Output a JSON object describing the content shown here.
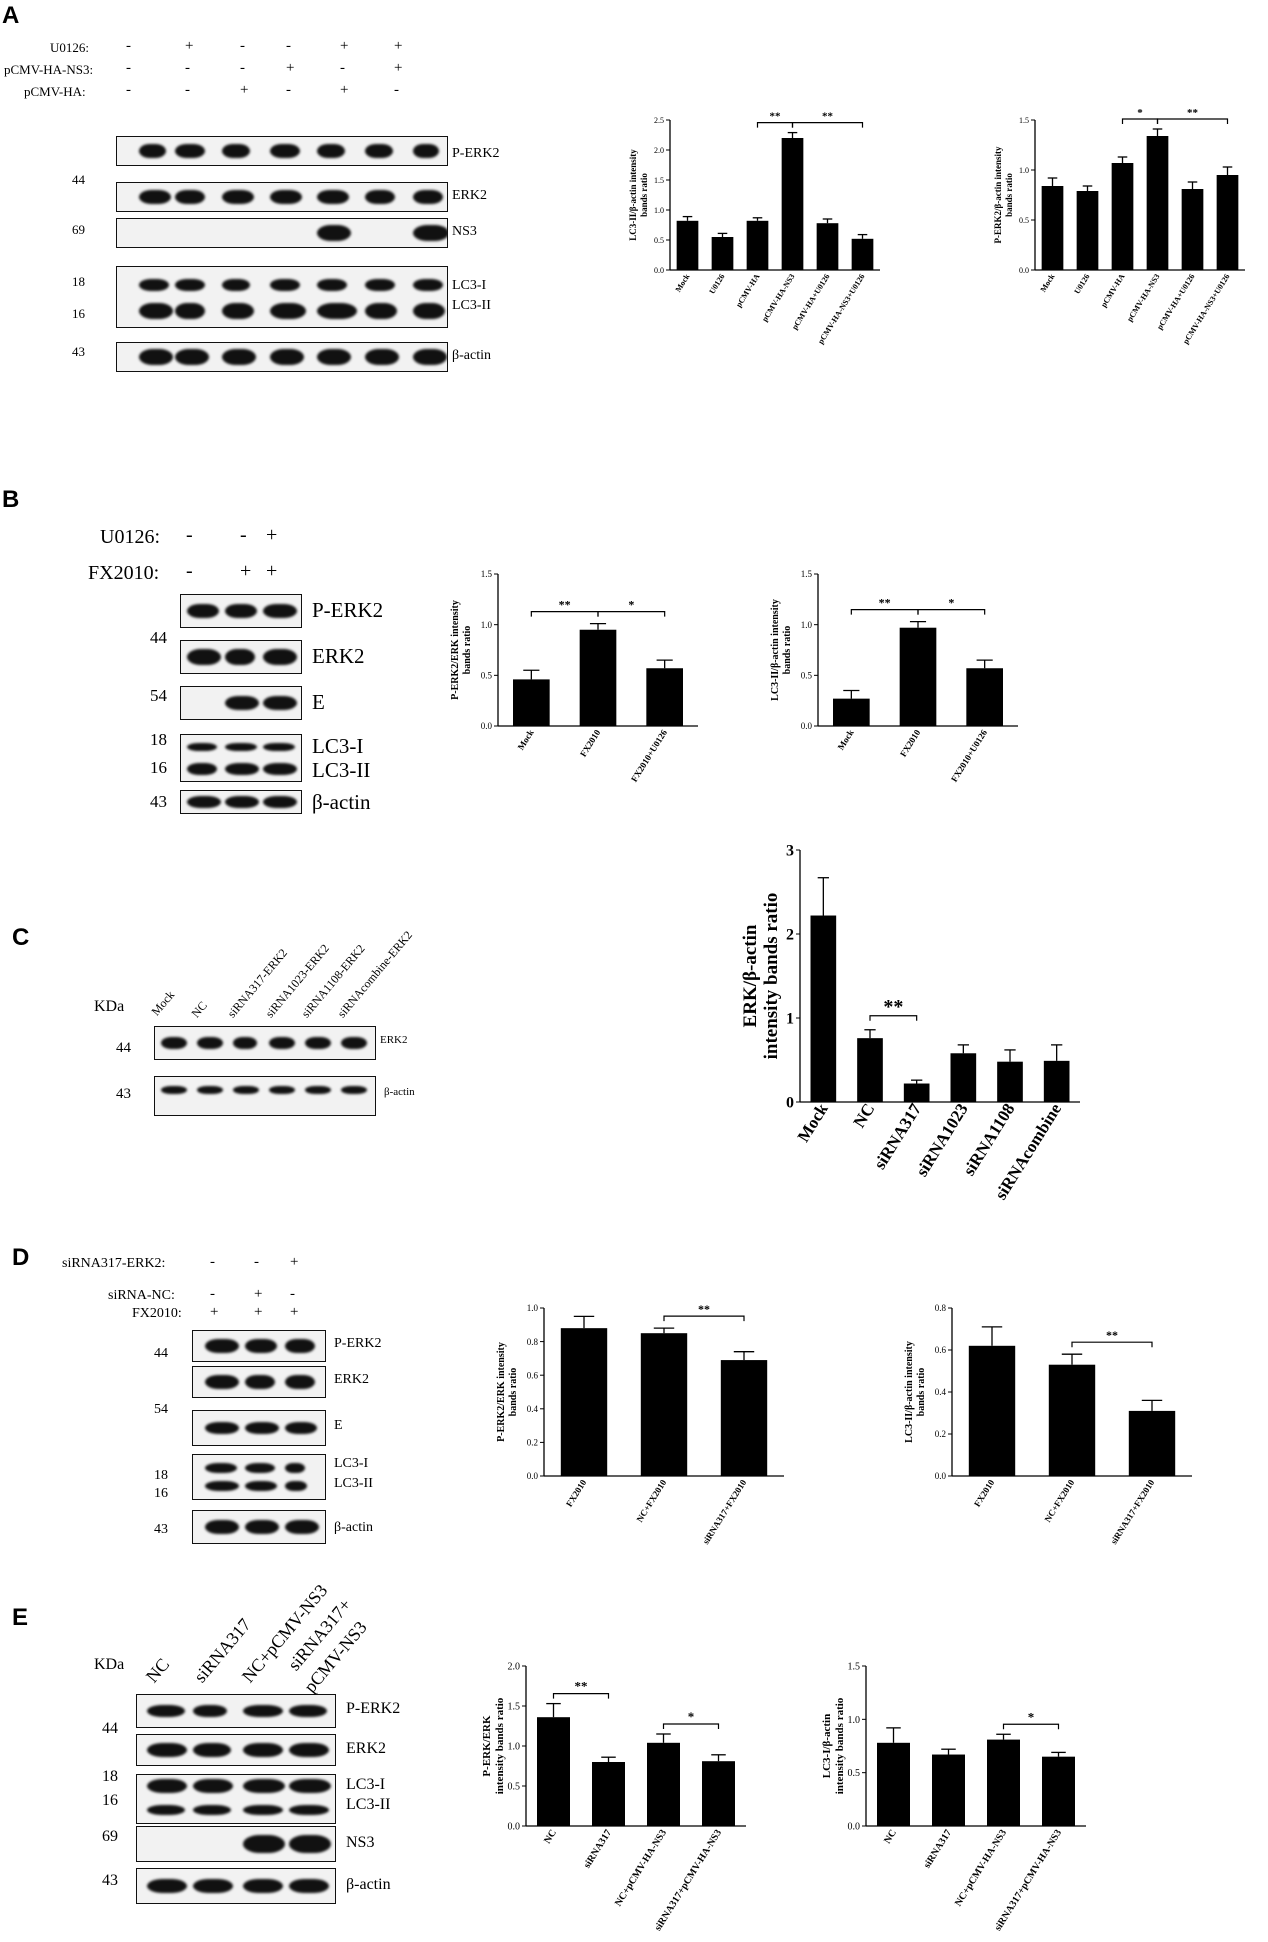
{
  "panelA": {
    "label": "A",
    "conditions": [
      {
        "name": "U0126:",
        "signs": [
          "-",
          "+",
          "-",
          "-",
          "+",
          "+"
        ]
      },
      {
        "name": "pCMV-HA-NS3:",
        "signs": [
          "-",
          "-",
          "-",
          "+",
          "-",
          "+"
        ]
      },
      {
        "name": "pCMV-HA:",
        "signs": [
          "-",
          "-",
          "+",
          "-",
          "+",
          "-"
        ]
      }
    ],
    "markers": [
      "44",
      "69",
      "18",
      "16",
      "43"
    ],
    "bands": [
      "P-ERK2",
      "ERK2",
      "NS3",
      "LC3-I",
      "LC3-II",
      "β-actin"
    ]
  },
  "panelB": {
    "label": "B",
    "conditions": [
      {
        "name": "U0126:",
        "signs": [
          "-",
          "-",
          "+"
        ]
      },
      {
        "name": "FX2010:",
        "signs": [
          "-",
          "+",
          "+"
        ]
      }
    ],
    "markers": [
      "44",
      "54",
      "18",
      "16",
      "43"
    ],
    "bands": [
      "P-ERK2",
      "ERK2",
      "E",
      "LC3-I",
      "LC3-II",
      "β-actin"
    ]
  },
  "panelC": {
    "label": "C",
    "kda": "KDa",
    "lanes": [
      "Mock",
      "NC",
      "siRNA317-ERK2",
      "siRNA1023-ERK2",
      "siRNA1108-ERK2",
      "siRNAcombine-ERK2"
    ],
    "markers": [
      "44",
      "43"
    ],
    "bands": [
      "ERK2",
      "β-actin"
    ]
  },
  "panelD": {
    "label": "D",
    "conditions": [
      {
        "name": "siRNA317-ERK2:",
        "signs": [
          "-",
          "-",
          "+"
        ]
      },
      {
        "name": "siRNA-NC:",
        "signs": [
          "-",
          "+",
          "-"
        ]
      },
      {
        "name": "FX2010:",
        "signs": [
          "+",
          "+",
          "+"
        ]
      }
    ],
    "markers": [
      "44",
      "54",
      "18",
      "16",
      "43"
    ],
    "bands": [
      "P-ERK2",
      "ERK2",
      "E",
      "LC3-I",
      "LC3-II",
      "β-actin"
    ]
  },
  "panelE": {
    "label": "E",
    "kda": "KDa",
    "lanes": [
      "NC",
      "siRNA317",
      "NC+pCMV-NS3",
      "siRNA317+",
      "pCMV-NS3"
    ],
    "markers": [
      "44",
      "18",
      "16",
      "69",
      "43"
    ],
    "bands": [
      "P-ERK2",
      "ERK2",
      "LC3-I",
      "LC3-II",
      "NS3",
      "β-actin"
    ]
  },
  "chart_data": [
    {
      "id": "A1",
      "type": "bar",
      "ylabel": [
        "LC3-II/β-actin intensity",
        "bands ratio"
      ],
      "categories": [
        "Mock",
        "U0126",
        "pCMV-HA",
        "pCMV-HA-NS3",
        "pCMV-HA+U0126",
        "pCMV-HA-NS3+U0126"
      ],
      "values": [
        0.82,
        0.55,
        0.82,
        2.2,
        0.78,
        0.52
      ],
      "errors": [
        0.07,
        0.06,
        0.05,
        0.09,
        0.07,
        0.07
      ],
      "ylim": [
        0,
        2.5
      ],
      "yticks": [
        "0.0",
        "0.5",
        "1.0",
        "1.5",
        "2.0",
        "2.5"
      ],
      "sig": [
        {
          "from": 2,
          "to": 3,
          "label": "**"
        },
        {
          "from": 3,
          "to": 5,
          "label": "**"
        }
      ]
    },
    {
      "id": "A2",
      "type": "bar",
      "ylabel": [
        "P-ERK2/β-actin intensity",
        "bands ratio"
      ],
      "categories": [
        "Mock",
        "U0126",
        "pCMV-HA",
        "pCMV-HA-NS3",
        "pCMV-HA+U0126",
        "pCMV-HA-NS3+U0126"
      ],
      "values": [
        0.84,
        0.79,
        1.07,
        1.34,
        0.81,
        0.95
      ],
      "errors": [
        0.08,
        0.05,
        0.06,
        0.07,
        0.07,
        0.08
      ],
      "ylim": [
        0,
        1.5
      ],
      "yticks": [
        "0.0",
        "0.5",
        "1.0",
        "1.5"
      ],
      "sig": [
        {
          "from": 2,
          "to": 3,
          "label": "*"
        },
        {
          "from": 3,
          "to": 5,
          "label": "**"
        }
      ]
    },
    {
      "id": "B1",
      "type": "bar",
      "ylabel": [
        "P-ERK2/ERK intensity",
        "bands ratio"
      ],
      "categories": [
        "Mock",
        "FX2010",
        "FX2010+U0126"
      ],
      "values": [
        0.46,
        0.95,
        0.57
      ],
      "errors": [
        0.09,
        0.06,
        0.08
      ],
      "ylim": [
        0,
        1.5
      ],
      "yticks": [
        "0.0",
        "0.5",
        "1.0",
        "1.5"
      ],
      "sig": [
        {
          "from": 0,
          "to": 1,
          "label": "**"
        },
        {
          "from": 1,
          "to": 2,
          "label": "*"
        }
      ]
    },
    {
      "id": "B2",
      "type": "bar",
      "ylabel": [
        "LC3-II/β-actin intensity",
        "bands ratio"
      ],
      "categories": [
        "Mock",
        "FX2010",
        "FX2010+U0126"
      ],
      "values": [
        0.27,
        0.97,
        0.57
      ],
      "errors": [
        0.08,
        0.06,
        0.08
      ],
      "ylim": [
        0,
        1.5
      ],
      "yticks": [
        "0.0",
        "0.5",
        "1.0",
        "1.5"
      ],
      "sig": [
        {
          "from": 0,
          "to": 1,
          "label": "**"
        },
        {
          "from": 1,
          "to": 2,
          "label": "*"
        }
      ]
    },
    {
      "id": "C1",
      "type": "bar",
      "ylabel": [
        "ERK/β-actin",
        "intensity bands ratio"
      ],
      "categories": [
        "Mock",
        "NC",
        "siRNA317",
        "siRNA1023",
        "siRNA1108",
        "siRNAcombine"
      ],
      "values": [
        2.22,
        0.76,
        0.22,
        0.58,
        0.48,
        0.49
      ],
      "errors": [
        0.45,
        0.1,
        0.04,
        0.1,
        0.14,
        0.19
      ],
      "ylim": [
        0,
        3
      ],
      "yticks": [
        "0",
        "1",
        "2",
        "3"
      ],
      "sig": [
        {
          "from": 1,
          "to": 2,
          "label": "**"
        }
      ]
    },
    {
      "id": "D1",
      "type": "bar",
      "ylabel": [
        "P-ERK2/ERK intensity",
        "bands ratio"
      ],
      "categories": [
        "FX2010",
        "NC+FX2010",
        "siRNA317+FX2010"
      ],
      "values": [
        0.88,
        0.85,
        0.69
      ],
      "errors": [
        0.07,
        0.03,
        0.05
      ],
      "ylim": [
        0,
        1.0
      ],
      "yticks": [
        "0.0",
        "0.2",
        "0.4",
        "0.6",
        "0.8",
        "1.0"
      ],
      "sig": [
        {
          "from": 1,
          "to": 2,
          "label": "**"
        }
      ]
    },
    {
      "id": "D2",
      "type": "bar",
      "ylabel": [
        "LC3-II/β-actin intensity",
        "bands ratio"
      ],
      "categories": [
        "FX2010",
        "NC+FX2010",
        "siRNA317+FX2010"
      ],
      "values": [
        0.62,
        0.53,
        0.31
      ],
      "errors": [
        0.09,
        0.05,
        0.05
      ],
      "ylim": [
        0,
        0.8
      ],
      "yticks": [
        "0.0",
        "0.2",
        "0.4",
        "0.6",
        "0.8"
      ],
      "sig": [
        {
          "from": 1,
          "to": 2,
          "label": "**"
        }
      ]
    },
    {
      "id": "E1",
      "type": "bar",
      "ylabel": [
        "P-ERK/ERK",
        "intensity bands ratio"
      ],
      "categories": [
        "NC",
        "siRNA317",
        "NC+pCMV-HA-NS3",
        "siRNA317+pCMV-HA-NS3"
      ],
      "values": [
        1.36,
        0.8,
        1.04,
        0.81
      ],
      "errors": [
        0.17,
        0.06,
        0.11,
        0.08
      ],
      "ylim": [
        0,
        2.0
      ],
      "yticks": [
        "0.0",
        "0.5",
        "1.0",
        "1.5",
        "2.0"
      ],
      "sig": [
        {
          "from": 0,
          "to": 1,
          "label": "**"
        },
        {
          "from": 2,
          "to": 3,
          "label": "*"
        }
      ]
    },
    {
      "id": "E2",
      "type": "bar",
      "ylabel": [
        "LC3-I/β-actin",
        "intensity bands ratio"
      ],
      "categories": [
        "NC",
        "siRNA317",
        "NC+pCMV-HA-NS3",
        "siRNA317+pCMV-HA-NS3"
      ],
      "values": [
        0.78,
        0.67,
        0.81,
        0.65
      ],
      "errors": [
        0.14,
        0.05,
        0.05,
        0.04
      ],
      "ylim": [
        0,
        1.5
      ],
      "yticks": [
        "0.0",
        "0.5",
        "1.0",
        "1.5"
      ],
      "sig": [
        {
          "from": 2,
          "to": 3,
          "label": "*"
        }
      ]
    }
  ]
}
